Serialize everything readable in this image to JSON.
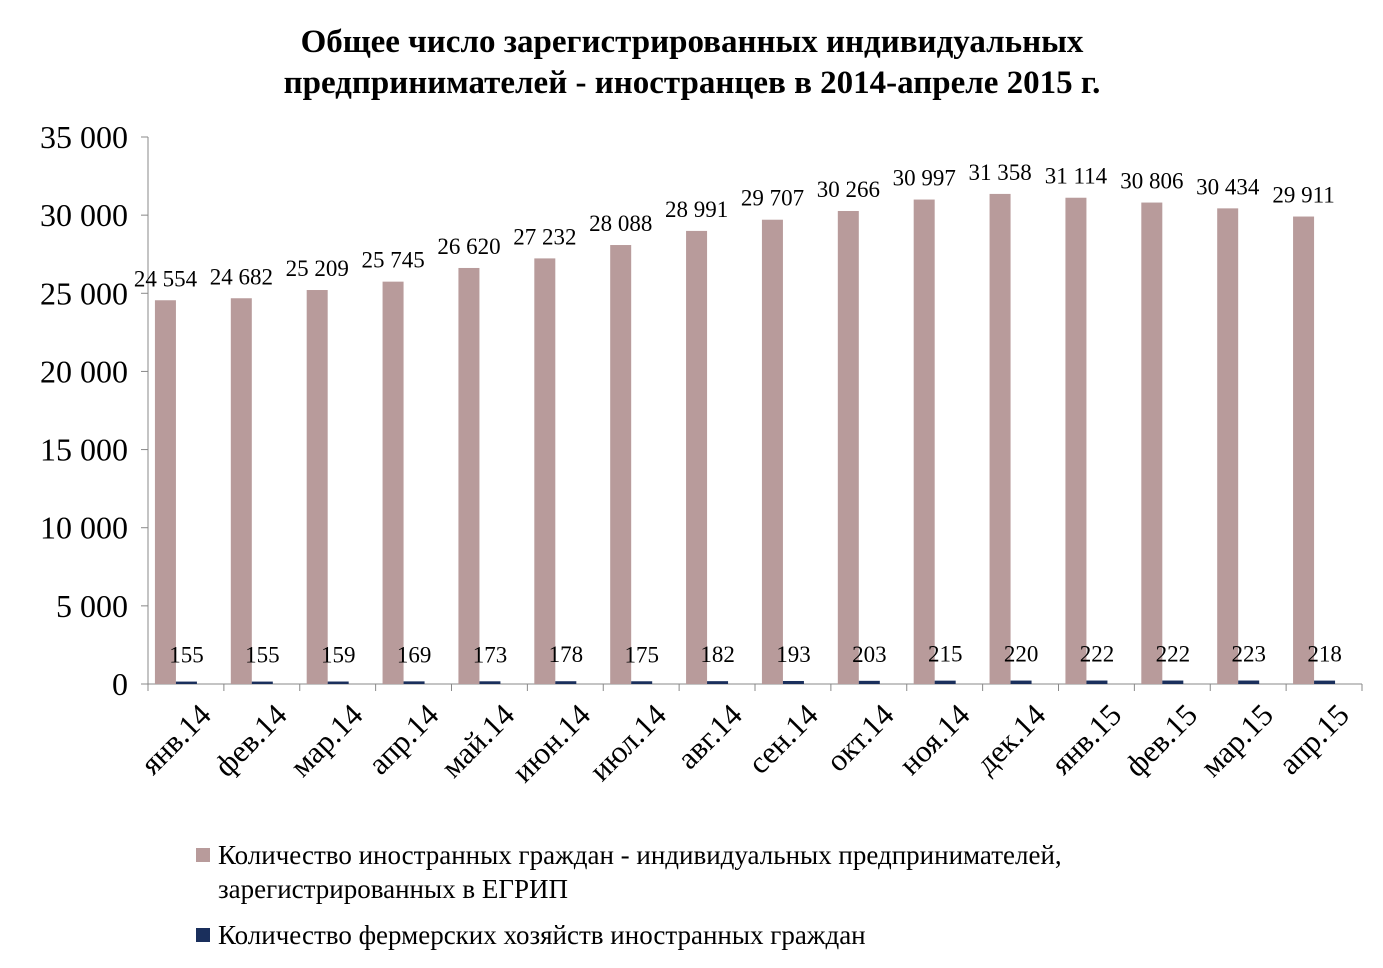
{
  "chart_data": {
    "type": "bar",
    "title": [
      "Общее число зарегистрированных индивидуальных",
      "предпринимателей - иностранцев в 2014-апреле 2015 г."
    ],
    "categories": [
      "янв.14",
      "фев.14",
      "мар.14",
      "апр.14",
      "май.14",
      "июн.14",
      "июл.14",
      "авг.14",
      "сен.14",
      "окт.14",
      "ноя.14",
      "дек.14",
      "янв.15",
      "фев.15",
      "мар.15",
      "апр.15"
    ],
    "series": [
      {
        "name": "Количество иностранных граждан - индивидуальных предпринимателей, зарегистрированных в ЕГРИП",
        "color": "#b89b9b",
        "values": [
          24554,
          24682,
          25209,
          25745,
          26620,
          27232,
          28088,
          28991,
          29707,
          30266,
          30997,
          31358,
          31114,
          30806,
          30434,
          29911
        ],
        "value_labels": [
          "24 554",
          "24 682",
          "25 209",
          "25 745",
          "26 620",
          "27 232",
          "28 088",
          "28 991",
          "29 707",
          "30 266",
          "30 997",
          "31 358",
          "31 114",
          "30 806",
          "30 434",
          "29 911"
        ]
      },
      {
        "name": "Количество фермерских хозяйств иностранных граждан",
        "color": "#1a2f5c",
        "values": [
          155,
          155,
          159,
          169,
          173,
          178,
          175,
          182,
          193,
          203,
          215,
          220,
          222,
          222,
          223,
          218
        ]
      }
    ],
    "ylim": [
      0,
      35000
    ],
    "yticks": [
      0,
      {
        "value": 5000,
        "label": "5 000"
      },
      {
        "value": 10000,
        "label": "10 000"
      },
      {
        "value": 15000,
        "label": "15 000"
      },
      {
        "value": 20000,
        "label": "20 000"
      },
      {
        "value": 25000,
        "label": "25 000"
      },
      {
        "value": 30000,
        "label": "30 000"
      },
      {
        "value": 35000,
        "label": "35 000"
      }
    ]
  }
}
